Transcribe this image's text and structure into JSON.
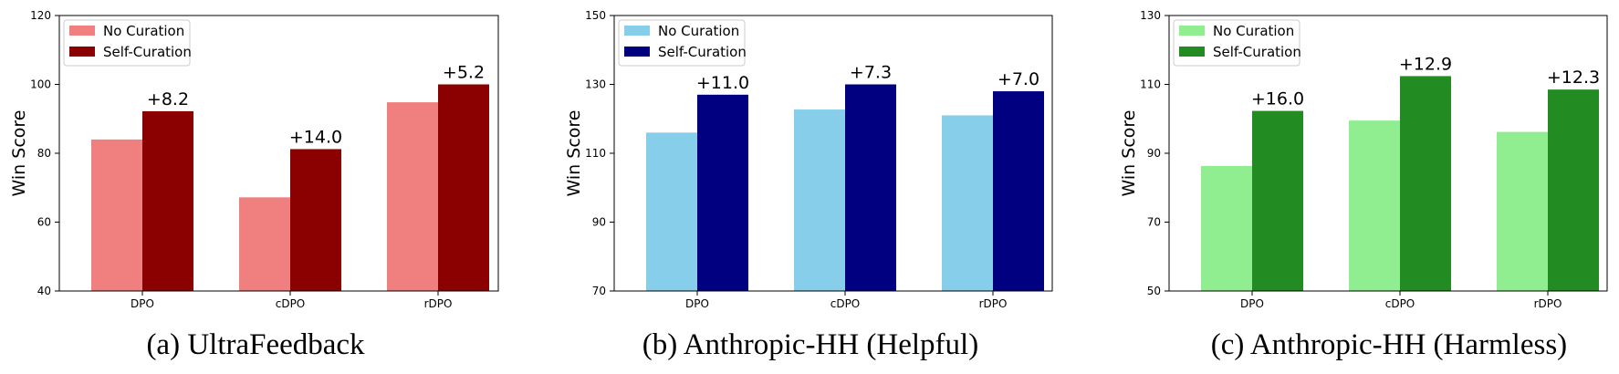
{
  "chart_data": [
    {
      "type": "bar",
      "caption": "(a) UltraFeedback",
      "categories": [
        "DPO",
        "cDPO",
        "rDPO"
      ],
      "ylabel": "Win Score",
      "xlabel": "",
      "ylim": [
        40,
        120
      ],
      "yticks": [
        40,
        60,
        80,
        100,
        120
      ],
      "legend_position": "upper-left",
      "grid": false,
      "series": [
        {
          "name": "No Curation",
          "color": "#f08080",
          "values": [
            84.0,
            67.2,
            94.8
          ]
        },
        {
          "name": "Self-Curation",
          "color": "#8b0000",
          "values": [
            92.2,
            81.2,
            100.0
          ]
        }
      ],
      "annotations": [
        "+8.2",
        "+14.0",
        "+5.2"
      ]
    },
    {
      "type": "bar",
      "caption": "(b) Anthropic-HH (Helpful)",
      "categories": [
        "DPO",
        "cDPO",
        "rDPO"
      ],
      "ylabel": "Win Score",
      "xlabel": "",
      "ylim": [
        70,
        150
      ],
      "yticks": [
        70,
        90,
        110,
        130,
        150
      ],
      "legend_position": "upper-left",
      "grid": false,
      "series": [
        {
          "name": "No Curation",
          "color": "#87ceeb",
          "values": [
            116.0,
            122.7,
            121.0
          ]
        },
        {
          "name": "Self-Curation",
          "color": "#000080",
          "values": [
            127.0,
            130.0,
            128.0
          ]
        }
      ],
      "annotations": [
        "+11.0",
        "+7.3",
        "+7.0"
      ]
    },
    {
      "type": "bar",
      "caption": "(c) Anthropic-HH (Harmless)",
      "categories": [
        "DPO",
        "cDPO",
        "rDPO"
      ],
      "ylabel": "Win Score",
      "xlabel": "",
      "ylim": [
        50,
        130
      ],
      "yticks": [
        50,
        70,
        90,
        110,
        130
      ],
      "legend_position": "upper-left",
      "grid": false,
      "series": [
        {
          "name": "No Curation",
          "color": "#90ee90",
          "values": [
            86.3,
            99.5,
            96.2
          ]
        },
        {
          "name": "Self-Curation",
          "color": "#228b22",
          "values": [
            102.3,
            112.4,
            108.5
          ]
        }
      ],
      "annotations": [
        "+16.0",
        "+12.9",
        "+12.3"
      ]
    }
  ]
}
